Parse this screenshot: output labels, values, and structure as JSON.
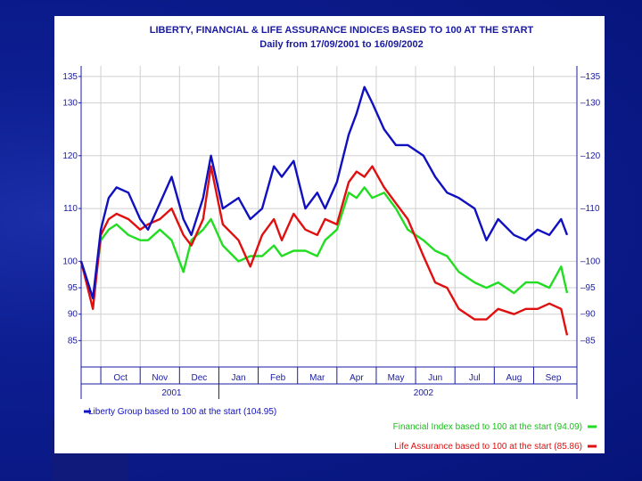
{
  "colors": {
    "background": "#0a1a8a",
    "panel": "#ffffff",
    "text": "#1a1aa0",
    "grid": "#d0d0d0",
    "liberty": "#1010c0",
    "financial": "#22dd22",
    "life": "#e01010"
  },
  "chart_data": {
    "type": "line",
    "title": "LIBERTY, FINANCIAL & LIFE ASSURANCE INDICES BASED TO 100 AT THE START",
    "subtitle": "Daily from 17/09/2001 to 16/09/2002",
    "xlabel": "",
    "ylabel": "",
    "ylim": [
      80,
      137
    ],
    "yticks": [
      85,
      90,
      95,
      100,
      110,
      120,
      130,
      135
    ],
    "xlim": [
      0,
      12.6
    ],
    "month_ticks": [
      "Oct",
      "Nov",
      "Dec",
      "Jan",
      "Feb",
      "Mar",
      "Apr",
      "May",
      "Jun",
      "Jul",
      "Aug",
      "Sep"
    ],
    "years": [
      "2001",
      "2002"
    ],
    "grid": true,
    "legend_position": "bottom",
    "series": [
      {
        "name": "Liberty Group based to 100 at the start",
        "end_value": "104.95",
        "x": [
          0,
          0.3,
          0.5,
          0.7,
          0.9,
          1.2,
          1.5,
          1.7,
          2.0,
          2.3,
          2.6,
          2.8,
          3.1,
          3.3,
          3.6,
          4.0,
          4.3,
          4.6,
          4.9,
          5.1,
          5.4,
          5.7,
          6.0,
          6.2,
          6.5,
          6.8,
          7.0,
          7.2,
          7.4,
          7.7,
          8.0,
          8.3,
          8.7,
          9.0,
          9.3,
          9.6,
          10.0,
          10.3,
          10.6,
          11.0,
          11.3,
          11.6,
          11.9,
          12.2,
          12.35
        ],
        "y": [
          100,
          93,
          106,
          112,
          114,
          113,
          108,
          106,
          111,
          116,
          108,
          105,
          112,
          120,
          110,
          112,
          108,
          110,
          118,
          116,
          119,
          110,
          113,
          110,
          115,
          124,
          128,
          133,
          130,
          125,
          122,
          122,
          120,
          116,
          113,
          112,
          110,
          104,
          108,
          105,
          104,
          106,
          105,
          108,
          105
        ]
      },
      {
        "name": "Financial Index based to 100 at the start",
        "end_value": "94.09",
        "x": [
          0,
          0.3,
          0.5,
          0.7,
          0.9,
          1.2,
          1.5,
          1.7,
          2.0,
          2.3,
          2.6,
          2.8,
          3.1,
          3.3,
          3.6,
          4.0,
          4.3,
          4.6,
          4.9,
          5.1,
          5.4,
          5.7,
          6.0,
          6.2,
          6.5,
          6.8,
          7.0,
          7.2,
          7.4,
          7.7,
          8.0,
          8.3,
          8.7,
          9.0,
          9.3,
          9.6,
          10.0,
          10.3,
          10.6,
          11.0,
          11.3,
          11.6,
          11.9,
          12.2,
          12.35
        ],
        "y": [
          100,
          93,
          104,
          106,
          107,
          105,
          104,
          104,
          106,
          104,
          98,
          104,
          106,
          108,
          103,
          100,
          101,
          101,
          103,
          101,
          102,
          102,
          101,
          104,
          106,
          113,
          112,
          114,
          112,
          113,
          110,
          106,
          104,
          102,
          101,
          98,
          96,
          95,
          96,
          94,
          96,
          96,
          95,
          99,
          94
        ]
      },
      {
        "name": "Life Assurance based to 100 at the start",
        "end_value": "85.86",
        "x": [
          0,
          0.3,
          0.5,
          0.7,
          0.9,
          1.2,
          1.5,
          1.7,
          2.0,
          2.3,
          2.6,
          2.8,
          3.1,
          3.3,
          3.6,
          4.0,
          4.3,
          4.6,
          4.9,
          5.1,
          5.4,
          5.7,
          6.0,
          6.2,
          6.5,
          6.8,
          7.0,
          7.2,
          7.4,
          7.7,
          8.0,
          8.3,
          8.7,
          9.0,
          9.3,
          9.6,
          10.0,
          10.3,
          10.6,
          11.0,
          11.3,
          11.6,
          11.9,
          12.2,
          12.35
        ],
        "y": [
          100,
          91,
          105,
          108,
          109,
          108,
          106,
          107,
          108,
          110,
          105,
          103,
          108,
          118,
          107,
          104,
          99,
          105,
          108,
          104,
          109,
          106,
          105,
          108,
          107,
          115,
          117,
          116,
          118,
          114,
          111,
          108,
          101,
          96,
          95,
          91,
          89,
          89,
          91,
          90,
          91,
          91,
          92,
          91,
          86
        ]
      }
    ]
  }
}
